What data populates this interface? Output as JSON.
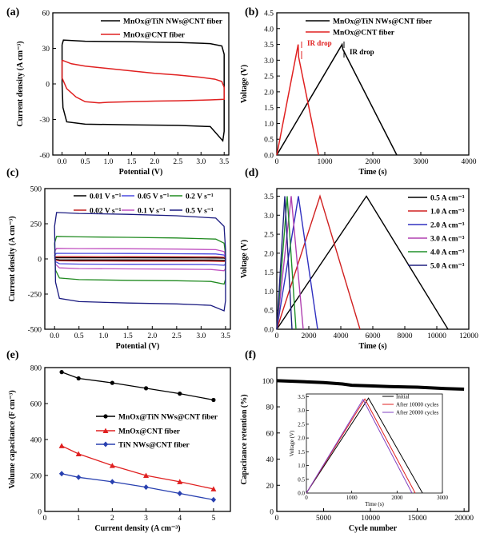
{
  "chart_data": [
    {
      "id": "a",
      "type": "line",
      "panel_label": "(a)",
      "xlabel": "Potential (V)",
      "ylabel": "Current density (A cm⁻³)",
      "xlim": [
        -0.2,
        3.6
      ],
      "ylim": [
        -60,
        60
      ],
      "xticks": [
        "0.0",
        "0.5",
        "1.0",
        "1.5",
        "2.0",
        "2.5",
        "3.0",
        "3.5"
      ],
      "yticks": [
        "60",
        "30",
        "0",
        "-30",
        "-60"
      ],
      "series": [
        {
          "name": "MnOx@TiN NWs@CNT fiber",
          "color": "#000000",
          "points": [
            [
              0,
              33
            ],
            [
              0.03,
              37
            ],
            [
              0.5,
              36
            ],
            [
              1.5,
              35.5
            ],
            [
              2.5,
              35
            ],
            [
              3.2,
              34
            ],
            [
              3.45,
              32
            ],
            [
              3.5,
              25
            ],
            [
              3.5,
              -40
            ],
            [
              3.47,
              -48
            ],
            [
              3.2,
              -36
            ],
            [
              2.5,
              -35
            ],
            [
              1.5,
              -34.5
            ],
            [
              0.5,
              -34
            ],
            [
              0.1,
              -32
            ],
            [
              0.02,
              -20
            ],
            [
              0,
              0
            ],
            [
              0,
              33
            ]
          ]
        },
        {
          "name": "MnOx@CNT fiber",
          "color": "#e02020",
          "points": [
            [
              0,
              20
            ],
            [
              0.2,
              17
            ],
            [
              0.5,
              15
            ],
            [
              1,
              13
            ],
            [
              1.5,
              11
            ],
            [
              2,
              9
            ],
            [
              2.5,
              7.5
            ],
            [
              3,
              5.5
            ],
            [
              3.3,
              4
            ],
            [
              3.45,
              2
            ],
            [
              3.5,
              -3
            ],
            [
              3.5,
              -13
            ],
            [
              3.2,
              -13.5
            ],
            [
              2.5,
              -14.2
            ],
            [
              2,
              -14.5
            ],
            [
              1.5,
              -15
            ],
            [
              1,
              -15.5
            ],
            [
              0.8,
              -16
            ],
            [
              0.5,
              -15
            ],
            [
              0.3,
              -11
            ],
            [
              0.1,
              -4
            ],
            [
              0,
              5
            ],
            [
              0,
              20
            ]
          ]
        }
      ]
    },
    {
      "id": "b",
      "type": "line",
      "panel_label": "(b)",
      "xlabel": "Time (s)",
      "ylabel": "Voltage (V)",
      "xlim": [
        0,
        4000
      ],
      "ylim": [
        0,
        4.5
      ],
      "xticks": [
        "0",
        "1000",
        "2000",
        "3000",
        "4000"
      ],
      "yticks": [
        "0.0",
        "0.5",
        "1.0",
        "1.5",
        "2.0",
        "2.5",
        "3.0",
        "3.5",
        "4.0",
        "4.5"
      ],
      "annotations": [
        "IR drop",
        "IR drop"
      ],
      "series": [
        {
          "name": "MnOx@TiN NWs@CNT fiber",
          "color": "#000000",
          "points": [
            [
              0,
              0
            ],
            [
              1360,
              3.5
            ],
            [
              1375,
              3.35
            ],
            [
              2500,
              0
            ]
          ]
        },
        {
          "name": "MnOx@CNT fiber",
          "color": "#e02020",
          "points": [
            [
              0,
              0
            ],
            [
              445,
              3.5
            ],
            [
              455,
              3.1
            ],
            [
              870,
              0
            ]
          ]
        }
      ]
    },
    {
      "id": "c",
      "type": "line",
      "panel_label": "(c)",
      "xlabel": "Potential (V)",
      "ylabel": "Current density (A cm⁻³)",
      "xlim": [
        -0.2,
        3.6
      ],
      "ylim": [
        -500,
        500
      ],
      "xticks": [
        "0.0",
        "0.5",
        "1.0",
        "1.5",
        "2.0",
        "2.5",
        "3.0",
        "3.5"
      ],
      "yticks": [
        "500",
        "250",
        "0",
        "-250",
        "-500"
      ],
      "series": [
        {
          "name": "0.01 V s⁻¹",
          "color": "#000000",
          "amp": 8
        },
        {
          "name": "0.02 V s⁻¹",
          "color": "#c02020",
          "amp": 16
        },
        {
          "name": "0.05 V s⁻¹",
          "color": "#4a4ae0",
          "amp": 40
        },
        {
          "name": "0.1 V s⁻¹",
          "color": "#c050c0",
          "amp": 75
        },
        {
          "name": "0.2 V s⁻¹",
          "color": "#208a20",
          "amp": 160
        },
        {
          "name": "0.5 V s⁻¹",
          "color": "#1a1a80",
          "amp": 330
        }
      ]
    },
    {
      "id": "d",
      "type": "line",
      "panel_label": "(d)",
      "xlabel": "Time (s)",
      "ylabel": "Voltage (V)",
      "xlim": [
        0,
        12000
      ],
      "ylim": [
        0,
        3.7
      ],
      "xticks": [
        "0",
        "2000",
        "4000",
        "6000",
        "8000",
        "10000",
        "12000"
      ],
      "yticks": [
        "0.0",
        "0.5",
        "1.0",
        "1.5",
        "2.0",
        "2.5",
        "3.0",
        "3.5"
      ],
      "series": [
        {
          "name": "0.5 A cm⁻³",
          "color": "#000000",
          "peak": 5600,
          "end": 10700
        },
        {
          "name": "1.0 A cm⁻³",
          "color": "#d02020",
          "peak": 2700,
          "end": 5200
        },
        {
          "name": "2.0 A cm⁻³",
          "color": "#3030c0",
          "peak": 1350,
          "end": 2550
        },
        {
          "name": "3.0 A cm⁻³",
          "color": "#b040b0",
          "peak": 900,
          "end": 1650
        },
        {
          "name": "4.0 A cm⁻³",
          "color": "#20902a",
          "peak": 650,
          "end": 1200
        },
        {
          "name": "5.0 A cm⁻³",
          "color": "#202080",
          "peak": 500,
          "end": 950
        }
      ]
    },
    {
      "id": "e",
      "type": "line",
      "panel_label": "(e)",
      "xlabel": "Current density (A cm⁻³)",
      "ylabel": "Volume capacitance (F cm⁻³)",
      "xlim": [
        0,
        5.5
      ],
      "ylim": [
        0,
        800
      ],
      "xticks": [
        "0",
        "1",
        "2",
        "3",
        "4",
        "5"
      ],
      "yticks": [
        "0",
        "200",
        "400",
        "600",
        "800"
      ],
      "x": [
        0.5,
        1,
        2,
        3,
        4,
        5
      ],
      "series": [
        {
          "name": "MnOx@TiN NWs@CNT fiber",
          "color": "#000000",
          "marker": "circle",
          "values": [
            775,
            740,
            715,
            685,
            655,
            620
          ]
        },
        {
          "name": "MnOx@CNT fiber",
          "color": "#e02020",
          "marker": "triangle",
          "values": [
            365,
            320,
            255,
            200,
            165,
            125
          ]
        },
        {
          "name": "TiN NWs@CNT fiber",
          "color": "#2840b0",
          "marker": "diamond",
          "values": [
            210,
            190,
            165,
            135,
            100,
            65
          ]
        }
      ]
    },
    {
      "id": "f",
      "type": "line",
      "panel_label": "(f)",
      "xlabel": "Cycle number",
      "ylabel": "Capacitance retention (%)",
      "xlim": [
        0,
        20500
      ],
      "ylim": [
        0,
        110
      ],
      "xticks": [
        "0",
        "5000",
        "10000",
        "15000",
        "20000"
      ],
      "yticks": [
        "0",
        "20",
        "40",
        "60",
        "80",
        "100"
      ],
      "series": [
        {
          "name": "Retention",
          "color": "#000000",
          "points": [
            [
              0,
              100
            ],
            [
              2000,
              99.5
            ],
            [
              5000,
              98.5
            ],
            [
              7000,
              97.5
            ],
            [
              8000,
              96.5
            ],
            [
              10000,
              96
            ],
            [
              12000,
              95.5
            ],
            [
              15000,
              95
            ],
            [
              18000,
              94
            ],
            [
              20000,
              93.5
            ]
          ]
        }
      ],
      "inset": {
        "xlabel": "Time (s)",
        "ylabel": "Voltage (V)",
        "xlim": [
          0,
          3000
        ],
        "ylim": [
          0,
          3.6
        ],
        "xticks": [
          "0",
          "1000",
          "2000",
          "3000"
        ],
        "yticks": [
          "0.0",
          "0.5",
          "1.0",
          "1.5",
          "2.0",
          "2.5",
          "3.0",
          "3.5"
        ],
        "series": [
          {
            "name": "Initial",
            "color": "#000000",
            "points": [
              [
                0,
                0
              ],
              [
                1370,
                3.45
              ],
              [
                2560,
                0
              ]
            ]
          },
          {
            "name": "After 10000 cycles",
            "color": "#e02020",
            "points": [
              [
                0,
                0
              ],
              [
                1290,
                3.42
              ],
              [
                2400,
                0
              ]
            ]
          },
          {
            "name": "After 20000 cycles",
            "color": "#8040c0",
            "points": [
              [
                0,
                0
              ],
              [
                1250,
                3.4
              ],
              [
                2330,
                0
              ]
            ]
          }
        ]
      }
    }
  ]
}
